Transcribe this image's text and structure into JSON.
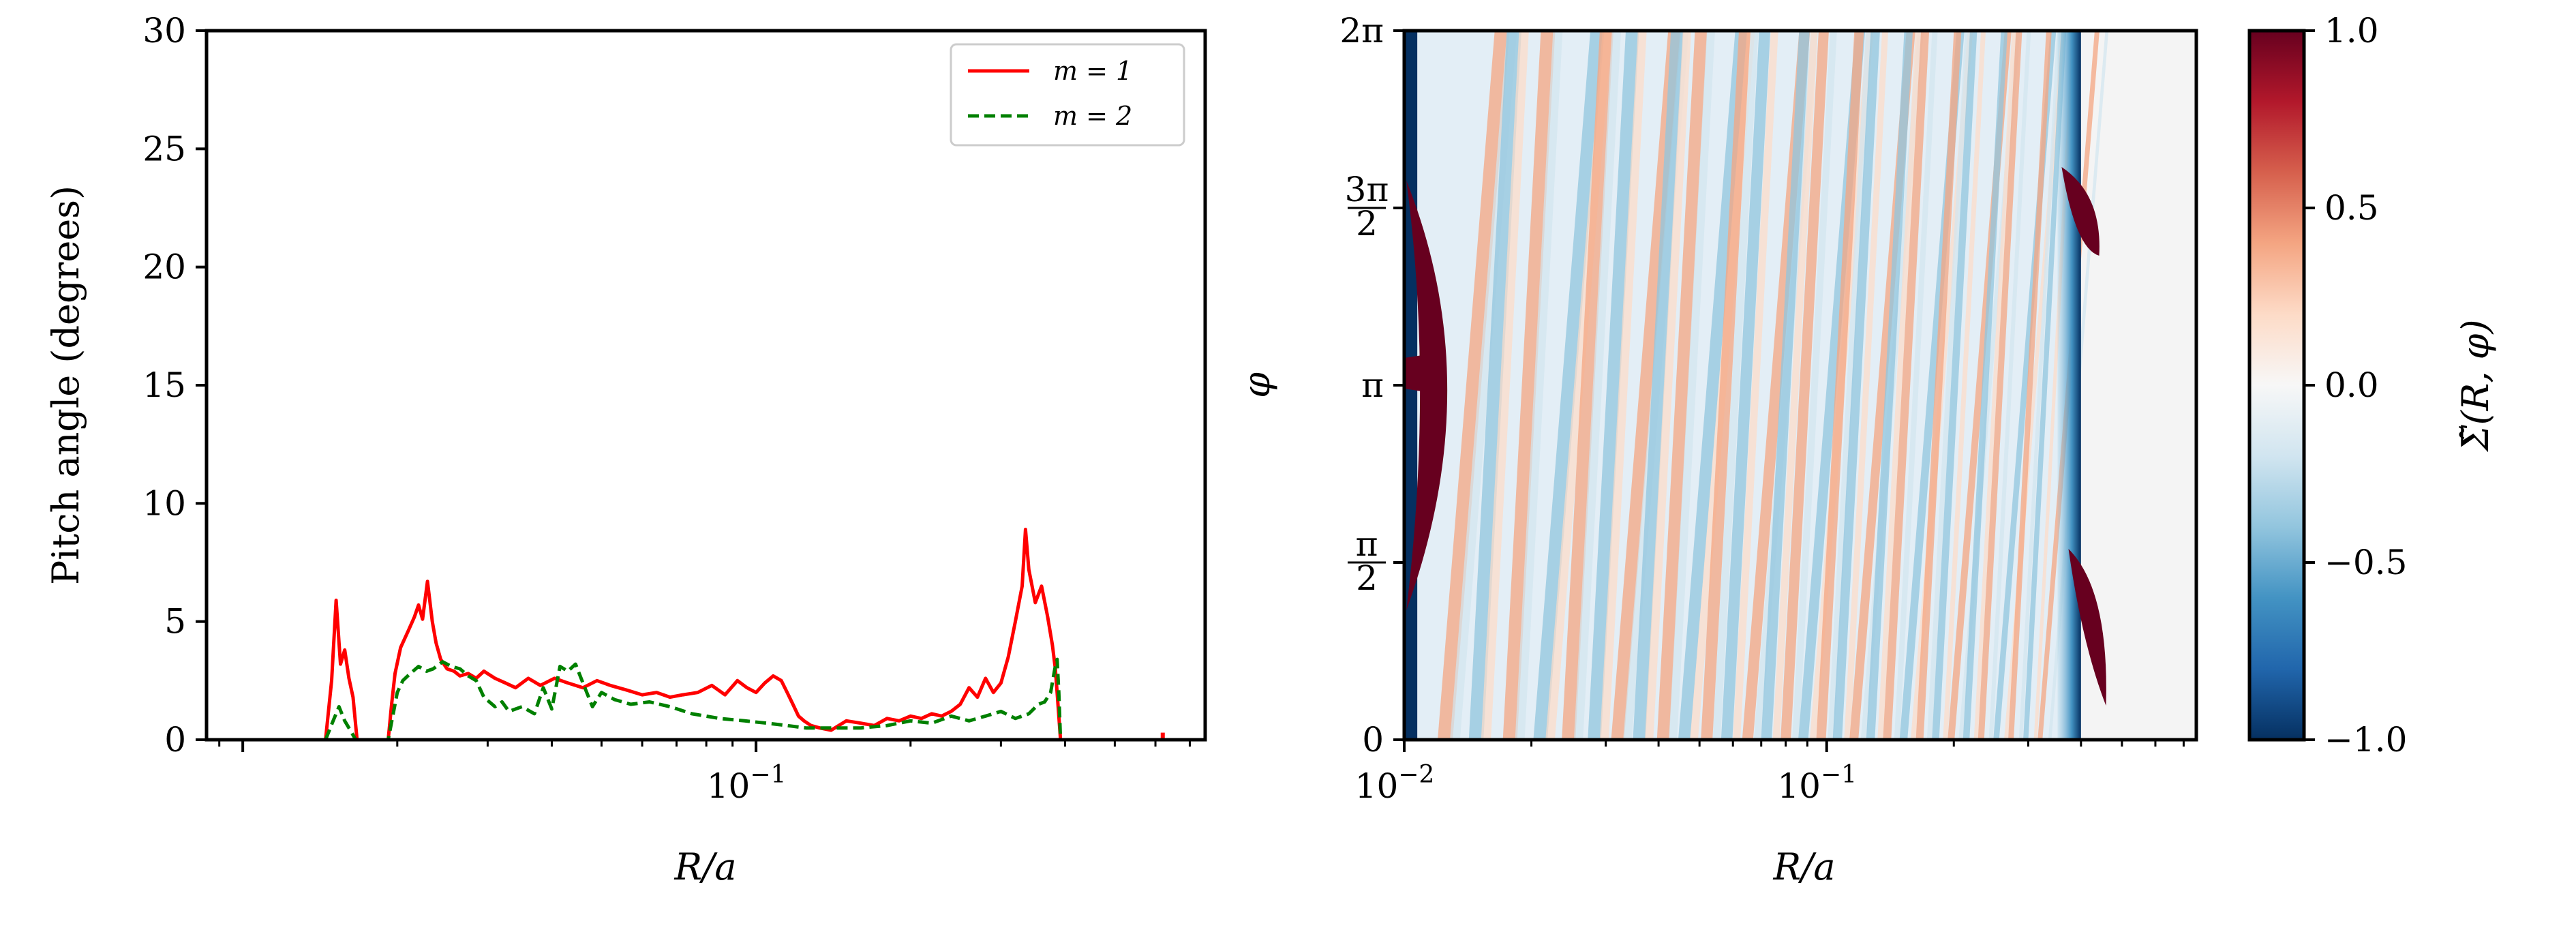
{
  "chart_data": [
    {
      "type": "line",
      "panel": "left",
      "xscale": "log",
      "xlim": [
        0.0085,
        0.75
      ],
      "xticks": [
        {
          "value": 0.1,
          "label": "10",
          "exp": "−1"
        }
      ],
      "xlabel": "R/a",
      "ylabel": "Pitch angle (degrees)",
      "ylim": [
        0,
        30
      ],
      "yticks": [
        "0",
        "5",
        "10",
        "15",
        "20",
        "25",
        "30"
      ],
      "legend": {
        "placement": "top-right",
        "entries": [
          "m = 1",
          "m = 2"
        ]
      },
      "series": [
        {
          "name": "m = 1",
          "color": "#ff0000",
          "dash": "solid",
          "x": [
            0.0145,
            0.0149,
            0.0152,
            0.0155,
            0.0158,
            0.0161,
            0.0164,
            0.0167,
            0.0192,
            0.0195,
            0.0198,
            0.0203,
            0.021,
            0.0216,
            0.022,
            0.0224,
            0.0229,
            0.0234,
            0.0238,
            0.0243,
            0.025,
            0.0258,
            0.0265,
            0.0275,
            0.0285,
            0.0295,
            0.031,
            0.0325,
            0.034,
            0.036,
            0.038,
            0.0405,
            0.043,
            0.046,
            0.049,
            0.052,
            0.056,
            0.06,
            0.064,
            0.068,
            0.072,
            0.077,
            0.082,
            0.087,
            0.092,
            0.096,
            0.1,
            0.104,
            0.108,
            0.112,
            0.115,
            0.118,
            0.121,
            0.124,
            0.128,
            0.133,
            0.14,
            0.15,
            0.16,
            0.17,
            0.18,
            0.19,
            0.2,
            0.21,
            0.22,
            0.23,
            0.24,
            0.25,
            0.26,
            0.27,
            0.28,
            0.29,
            0.3,
            0.31,
            0.32,
            0.33,
            0.335,
            0.34,
            0.35,
            0.36,
            0.37,
            0.378,
            0.383,
            0.386,
            0.389,
            0.392
          ],
          "y": [
            0,
            2.5,
            5.9,
            3.2,
            3.8,
            2.6,
            1.8,
            0,
            0,
            1.5,
            2.8,
            3.9,
            4.6,
            5.2,
            5.7,
            5.1,
            6.7,
            5.0,
            4.1,
            3.4,
            3.0,
            2.9,
            2.7,
            2.8,
            2.6,
            2.9,
            2.6,
            2.4,
            2.2,
            2.6,
            2.3,
            2.6,
            2.4,
            2.2,
            2.5,
            2.3,
            2.1,
            1.9,
            2.0,
            1.8,
            1.9,
            2.0,
            2.3,
            1.9,
            2.5,
            2.2,
            2.0,
            2.4,
            2.7,
            2.5,
            2.0,
            1.5,
            1.0,
            0.8,
            0.6,
            0.5,
            0.4,
            0.8,
            0.7,
            0.6,
            0.9,
            0.8,
            1.0,
            0.9,
            1.1,
            1.0,
            1.2,
            1.5,
            2.2,
            1.8,
            2.6,
            2.0,
            2.4,
            3.5,
            5.0,
            6.5,
            8.9,
            7.2,
            5.8,
            6.5,
            5.2,
            4.0,
            3.0,
            2.0,
            1.0,
            0
          ],
          "extra_points": [
            {
              "x": 0.62,
              "y": 0.3
            }
          ]
        },
        {
          "name": "m = 2",
          "color": "#008000",
          "dash": "dashed",
          "x": [
            0.0145,
            0.015,
            0.0154,
            0.0158,
            0.0162,
            0.0166,
            0.0192,
            0.0196,
            0.02,
            0.0205,
            0.0212,
            0.022,
            0.0228,
            0.0235,
            0.0245,
            0.0255,
            0.0265,
            0.0275,
            0.0285,
            0.0295,
            0.031,
            0.032,
            0.033,
            0.035,
            0.037,
            0.0385,
            0.04,
            0.0415,
            0.043,
            0.0445,
            0.046,
            0.048,
            0.05,
            0.053,
            0.057,
            0.062,
            0.068,
            0.075,
            0.085,
            0.095,
            0.105,
            0.115,
            0.125,
            0.14,
            0.16,
            0.18,
            0.2,
            0.22,
            0.24,
            0.26,
            0.28,
            0.3,
            0.32,
            0.34,
            0.355,
            0.365,
            0.375,
            0.382,
            0.386,
            0.389,
            0.392
          ],
          "y": [
            0,
            0.8,
            1.4,
            0.8,
            0.4,
            0,
            0,
            1.0,
            2.0,
            2.5,
            2.8,
            3.1,
            2.9,
            3.0,
            3.3,
            3.1,
            3.0,
            2.7,
            2.5,
            1.8,
            1.4,
            1.6,
            1.2,
            1.4,
            1.1,
            2.2,
            1.3,
            3.1,
            2.9,
            3.2,
            2.4,
            1.4,
            2.0,
            1.7,
            1.5,
            1.6,
            1.4,
            1.1,
            0.9,
            0.8,
            0.7,
            0.6,
            0.5,
            0.5,
            0.5,
            0.6,
            0.8,
            0.7,
            1.0,
            0.8,
            1.0,
            1.2,
            0.9,
            1.1,
            1.5,
            1.6,
            2.0,
            3.0,
            3.4,
            2.0,
            0
          ]
        }
      ]
    },
    {
      "type": "heatmap",
      "panel": "right",
      "xscale": "log",
      "xlim": [
        0.01,
        0.75
      ],
      "xticks": [
        {
          "value": 0.01,
          "label": "10",
          "exp": "−2"
        },
        {
          "value": 0.1,
          "label": "10",
          "exp": "−1"
        }
      ],
      "xlabel": "R/a",
      "ylabel": "φ",
      "ylim": [
        "0",
        "2π"
      ],
      "yticks": [
        {
          "value": 0,
          "label": "0"
        },
        {
          "value": 0.25,
          "label": "π/2",
          "num": "π",
          "den": "2"
        },
        {
          "value": 0.5,
          "label": "π"
        },
        {
          "value": 0.75,
          "label": "3π/2",
          "num": "3π",
          "den": "2"
        },
        {
          "value": 1,
          "label": "2π"
        }
      ],
      "colorbar": {
        "label": "Σ̃(R, φ)",
        "range": [
          -1.0,
          1.0
        ],
        "ticks": [
          "1.0",
          "0.5",
          "0.0",
          "−0.5",
          "−1.0"
        ],
        "colormap": "RdBu_r",
        "low_color": "#053061",
        "high_color": "#67001f"
      },
      "inner_edge_r": 0.0105,
      "outer_edge_r": 0.4,
      "stripes": [
        0.0125,
        0.0148,
        0.0178,
        0.021,
        0.0245,
        0.0282,
        0.032,
        0.036,
        0.041,
        0.046,
        0.052,
        0.058,
        0.065,
        0.072,
        0.08,
        0.088,
        0.097,
        0.106,
        0.116,
        0.127,
        0.139,
        0.152,
        0.166,
        0.181,
        0.197,
        0.214,
        0.232,
        0.252,
        0.273,
        0.296,
        0.32
      ],
      "stripe_slope": 0.06
    }
  ]
}
